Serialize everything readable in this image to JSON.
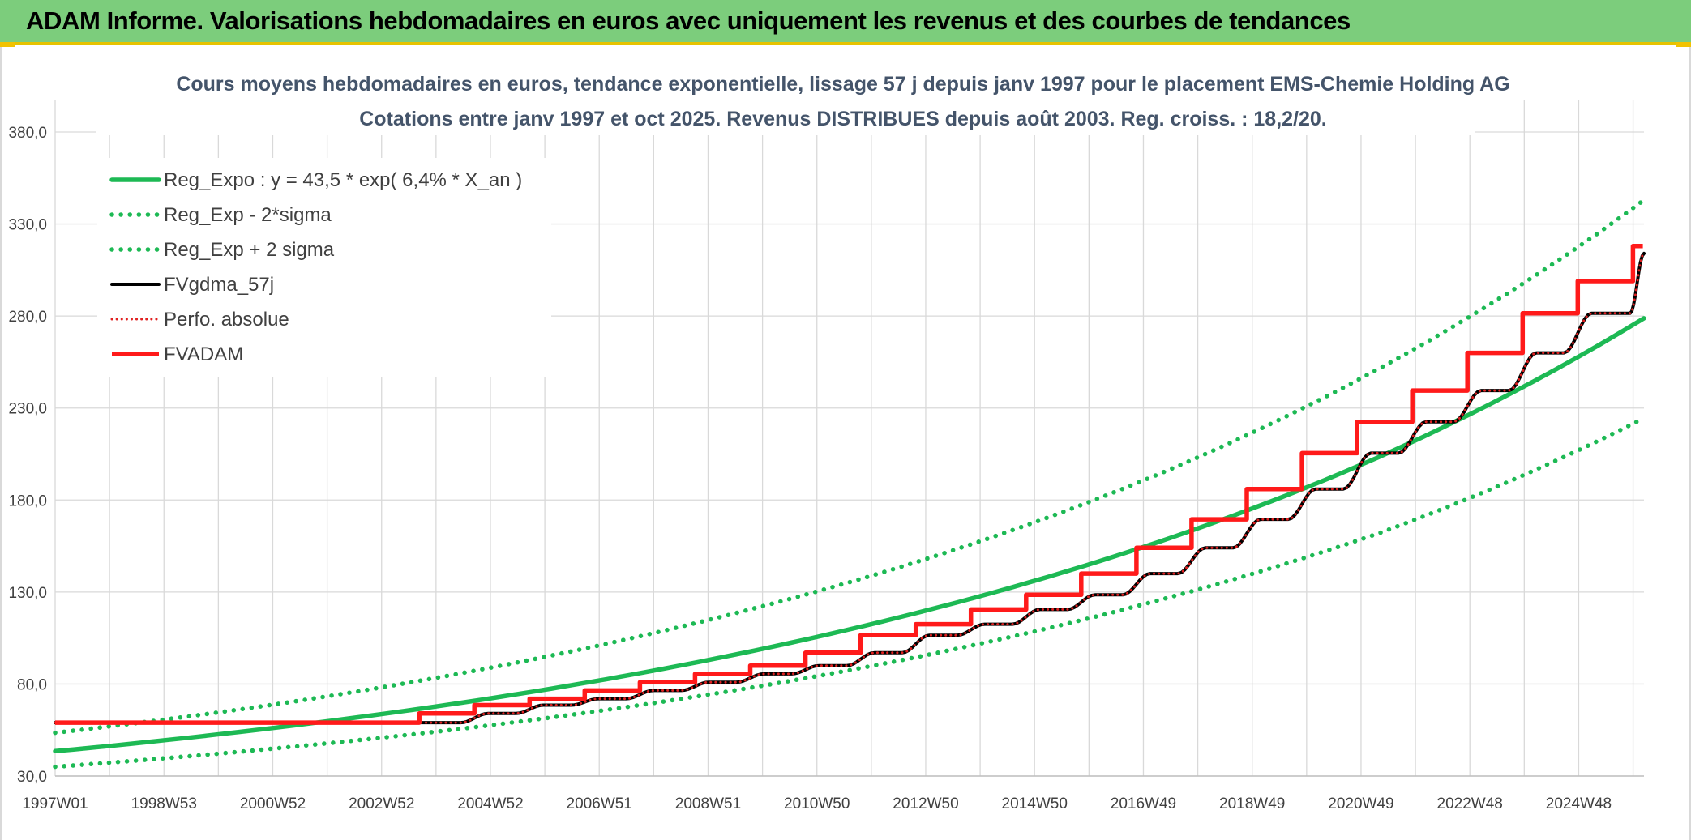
{
  "header": {
    "title": "ADAM Informe. Valorisations hebdomadaires en euros avec uniquement les revenus et des courbes de tendances"
  },
  "colors": {
    "banner": "#7ccd7c",
    "regression": "#1db954",
    "fv_gdma": "#000000",
    "fvadam": "#ff1a1a",
    "perfo": "#e02020",
    "grid": "#d9d9d9"
  },
  "chart_data": {
    "type": "line",
    "title": "Cours moyens hebdomadaires en euros, tendance exponentielle, lissage 57 j depuis janv 1997 pour le placement EMS-Chemie Holding AG",
    "subtitle": "Cotations entre janv 1997 et oct 2025. Revenus DISTRIBUES depuis août 2003. Reg. croiss. : 18,2/20.",
    "x_tick_labels": [
      "1997W01",
      "1998W53",
      "2000W52",
      "2002W52",
      "2004W52",
      "2006W51",
      "2008W51",
      "2010W50",
      "2012W50",
      "2014W50",
      "2016W49",
      "2018W49",
      "2020W49",
      "2022W48",
      "2024W48"
    ],
    "x_range_years": [
      1997.0,
      2025.8
    ],
    "ylim": [
      30,
      380
    ],
    "y_ticks": [
      "30,0",
      "80,0",
      "130,0",
      "180,0",
      "230,0",
      "280,0",
      "330,0",
      "380,0"
    ],
    "y_tick_values": [
      30,
      80,
      130,
      180,
      230,
      280,
      330,
      380
    ],
    "grid": true,
    "legend_position": "top-left",
    "series": [
      {
        "name": "Reg_Expo : y = 43,5 * exp( 6,4% *  X_an )",
        "style": "solid-green",
        "x": [
          1997,
          2001,
          2005,
          2009,
          2013,
          2017,
          2021,
          2025.8
        ],
        "values": [
          43.5,
          56.3,
          72.7,
          94.0,
          121.6,
          157.2,
          203.4,
          278.8
        ]
      },
      {
        "name": "Reg_Exp - 2*sigma",
        "style": "dotted-green",
        "x": [
          1997,
          2001,
          2005,
          2009,
          2013,
          2017,
          2021,
          2025.8
        ],
        "values": [
          35.0,
          45.0,
          58.0,
          75.0,
          97.0,
          125.5,
          162.0,
          224.5
        ]
      },
      {
        "name": "Reg_Exp + 2 sigma",
        "style": "dotted-green",
        "x": [
          1997,
          2001,
          2005,
          2009,
          2013,
          2017,
          2021,
          2025.8
        ],
        "values": [
          53.5,
          69.0,
          89.5,
          116.0,
          150.0,
          194.0,
          251.5,
          343.0
        ]
      },
      {
        "name": "FVgdma_57j",
        "style": "solid-black",
        "x": [
          1997.0,
          2003.6,
          2004.6,
          2005.6,
          2006.6,
          2007.6,
          2008.6,
          2009.6,
          2010.6,
          2011.6,
          2012.6,
          2013.6,
          2014.6,
          2015.6,
          2016.6,
          2017.6,
          2018.6,
          2019.6,
          2020.6,
          2021.6,
          2022.6,
          2023.6,
          2024.6,
          2025.8
        ],
        "values": [
          59.0,
          59.0,
          64.0,
          68.5,
          72.0,
          76.5,
          81.0,
          85.5,
          90.0,
          97.0,
          106.5,
          112.5,
          120.5,
          128.5,
          140.0,
          154.0,
          169.5,
          186.0,
          205.5,
          222.5,
          239.5,
          260.0,
          281.5,
          314.0
        ]
      },
      {
        "name": "Perfo. absolue",
        "style": "dotted-red",
        "x": [
          1997.0,
          2003.6,
          2004.6,
          2005.6,
          2006.6,
          2007.6,
          2008.6,
          2009.6,
          2010.6,
          2011.6,
          2012.6,
          2013.6,
          2014.6,
          2015.6,
          2016.6,
          2017.6,
          2018.6,
          2019.6,
          2020.6,
          2021.6,
          2022.6,
          2023.6,
          2024.6,
          2025.8
        ],
        "values": [
          59.0,
          59.0,
          64.0,
          68.5,
          72.0,
          76.5,
          81.0,
          85.5,
          90.0,
          97.0,
          106.5,
          112.5,
          120.5,
          128.5,
          140.0,
          154.0,
          169.5,
          186.0,
          205.5,
          222.5,
          239.5,
          260.0,
          281.5,
          314.0
        ]
      },
      {
        "name": "FVADAM",
        "style": "step-red",
        "x": [
          1997.0,
          2003.6,
          2004.6,
          2005.6,
          2006.6,
          2007.6,
          2008.6,
          2009.6,
          2010.6,
          2011.6,
          2012.6,
          2013.6,
          2014.6,
          2015.6,
          2016.6,
          2017.6,
          2018.6,
          2019.6,
          2020.6,
          2021.6,
          2022.6,
          2023.6,
          2024.6,
          2025.6
        ],
        "values": [
          59.0,
          64.0,
          68.5,
          72.0,
          76.5,
          81.0,
          85.5,
          90.0,
          97.0,
          106.5,
          112.5,
          120.5,
          128.5,
          140.0,
          154.0,
          169.5,
          186.0,
          205.5,
          222.5,
          239.5,
          260.0,
          281.5,
          299.0,
          318.0
        ]
      }
    ]
  }
}
